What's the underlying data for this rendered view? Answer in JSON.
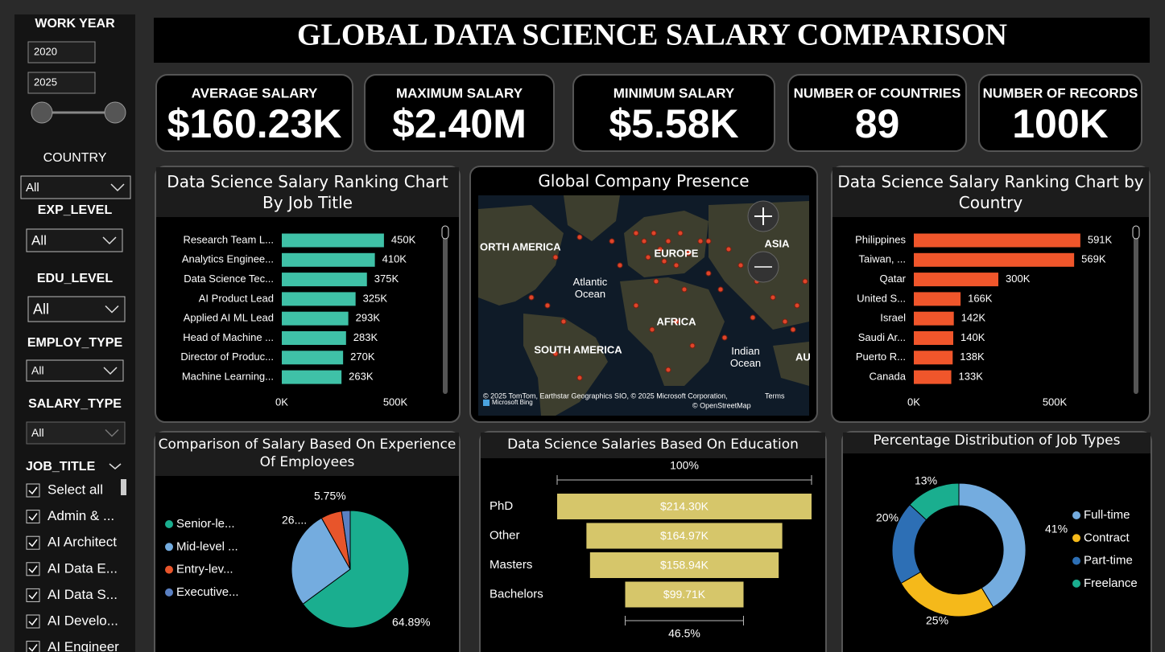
{
  "title": "GLOBAL DATA SCIENCE SALARY COMPARISON",
  "filters": {
    "work_year": {
      "label": "WORK YEAR",
      "start": 2020,
      "end": 2025
    },
    "country": {
      "label": "COUNTRY",
      "value": "All"
    },
    "exp_level": {
      "label": "EXP_LEVEL",
      "value": "All"
    },
    "edu_level": {
      "label": "EDU_LEVEL",
      "value": "All"
    },
    "employ_type": {
      "label": "EMPLOY_TYPE",
      "value": "All"
    },
    "salary_type": {
      "label": "SALARY_TYPE",
      "value": "All"
    },
    "job_title": {
      "label": "JOB_TITLE",
      "options": [
        "Select all",
        "Admin & ...",
        "AI Architect",
        "AI Data E...",
        "AI Data S...",
        "AI Develo...",
        "AI Engineer"
      ]
    }
  },
  "kpis": [
    {
      "label": "AVERAGE SALARY",
      "value": "$160.23K"
    },
    {
      "label": "MAXIMUM SALARY",
      "value": "$2.40M"
    },
    {
      "label": "MINIMUM SALARY",
      "value": "$5.58K"
    },
    {
      "label": "NUMBER OF COUNTRIES",
      "value": "89"
    },
    {
      "label": "NUMBER OF RECORDS",
      "value": "100K"
    }
  ],
  "map": {
    "title": "Global Company Presence",
    "labels": [
      "ORTH AMERICA",
      "EUROPE",
      "ASIA",
      "Atlantic Ocean",
      "AFRICA",
      "SOUTH AMERICA",
      "Indian Ocean",
      "AU"
    ],
    "attribution": "© 2025 TomTom, Earthstar Geographics SIO, © 2025 Microsoft Corporation,",
    "terms": "Terms",
    "osm": "© OpenStreetMap",
    "brand": "Microsoft Bing"
  },
  "chart_data": [
    {
      "type": "bar",
      "title": "Data Science Salary Ranking Chart By Job Title",
      "categories": [
        "Research Team L...",
        "Analytics Enginee...",
        "Data Science Tec...",
        "AI Product Lead",
        "Applied AI ML Lead",
        "Head of Machine ...",
        "Director of Produc...",
        "Machine Learning..."
      ],
      "values": [
        450000,
        410000,
        375000,
        325000,
        293000,
        283000,
        270000,
        263000
      ],
      "value_labels": [
        "450K",
        "410K",
        "375K",
        "325K",
        "293K",
        "283K",
        "270K",
        "263K"
      ],
      "color": "#3fc1a7",
      "xlim": [
        0,
        500000
      ],
      "xticks": [
        {
          "value": 0,
          "label": "0K"
        },
        {
          "value": 500000,
          "label": "500K"
        }
      ]
    },
    {
      "type": "bar",
      "title": "Data Science Salary Ranking Chart by Country",
      "categories": [
        "Philippines",
        "Taiwan, ...",
        "Qatar",
        "United S...",
        "Israel",
        "Saudi Ar...",
        "Puerto R...",
        "Canada"
      ],
      "values": [
        591000,
        569000,
        300000,
        166000,
        142000,
        140000,
        138000,
        133000
      ],
      "value_labels": [
        "591K",
        "569K",
        "300K",
        "166K",
        "142K",
        "140K",
        "138K",
        "133K"
      ],
      "color": "#f0562b",
      "xlim": [
        0,
        500000
      ],
      "xticks": [
        {
          "value": 0,
          "label": "0K"
        },
        {
          "value": 500000,
          "label": "500K"
        }
      ]
    },
    {
      "type": "pie",
      "title": "Comparison of Salary Based On Experience Of Employees",
      "categories": [
        "Senior-le...",
        "Mid-level ...",
        "Entry-lev...",
        "Executive..."
      ],
      "values": [
        64.89,
        26.99,
        5.75,
        2.37
      ],
      "value_labels": [
        "64.89%",
        "26....",
        "5.75%",
        null
      ],
      "colors": [
        "#1aae8f",
        "#74acdf",
        "#e8552b",
        "#5a80c2"
      ]
    },
    {
      "type": "funnel",
      "title": "Data Science Salaries Based On Education",
      "categories": [
        "PhD",
        "Other",
        "Masters",
        "Bachelors"
      ],
      "values": [
        214300,
        164970,
        158940,
        99710
      ],
      "value_labels": [
        "$214.30K",
        "$164.97K",
        "$158.94K",
        "$99.71K"
      ],
      "ratio_labels": [
        {
          "value": 100,
          "label": "100%"
        },
        {
          "value": 46.5,
          "label": "46.5%"
        }
      ],
      "color": "#d6c66a"
    },
    {
      "type": "donut",
      "title": "Percentage Distribution of Job Types",
      "categories": [
        "Full-time",
        "Contract",
        "Part-time",
        "Freelance"
      ],
      "values": [
        41,
        25,
        20,
        13
      ],
      "value_labels": [
        "41%",
        "25%",
        "20%",
        "13%"
      ],
      "colors": [
        "#74acdf",
        "#f5b91a",
        "#2d6fb5",
        "#1aae8f"
      ]
    }
  ]
}
